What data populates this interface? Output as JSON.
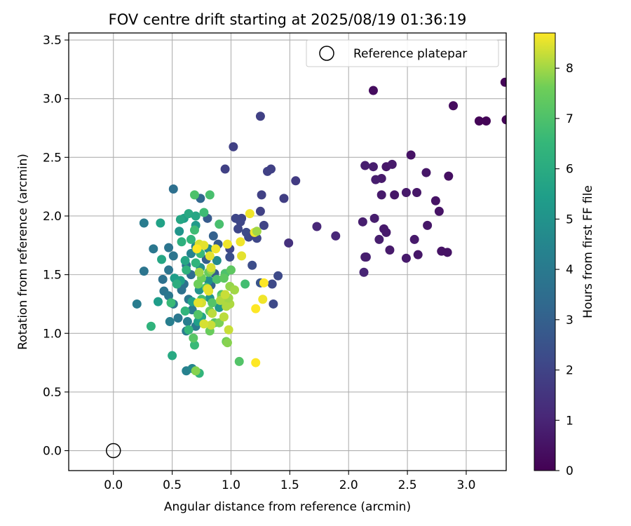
{
  "chart_data": {
    "type": "scatter",
    "title": "FOV centre drift starting at 2025/08/19 01:36:19",
    "xlabel": "Angular distance from reference (arcmin)",
    "ylabel": "Rotation from reference (arcmin)",
    "xlim": [
      -0.38,
      3.34
    ],
    "ylim": [
      -0.17,
      3.56
    ],
    "xticks": [
      "0.0",
      "0.5",
      "1.0",
      "1.5",
      "2.0",
      "2.5",
      "3.0"
    ],
    "yticks": [
      "0.0",
      "0.5",
      "1.0",
      "1.5",
      "2.0",
      "2.5",
      "3.0",
      "3.5"
    ],
    "grid": true,
    "legend": {
      "placement": "top-right",
      "entries": [
        "Reference platepar"
      ]
    },
    "reference_point": {
      "x": 0.0,
      "y": 0.0,
      "name": "Reference platepar",
      "marker": "hollow-circle"
    },
    "colorbar": {
      "label": "Hours from first FF file",
      "colormap": "viridis",
      "range": [
        0,
        8.7
      ],
      "ticks": [
        "0",
        "1",
        "2",
        "3",
        "4",
        "5",
        "6",
        "7",
        "8"
      ]
    },
    "points": [
      [
        3.33,
        3.14,
        0.1
      ],
      [
        2.21,
        3.07,
        0.3
      ],
      [
        2.89,
        2.94,
        0.3
      ],
      [
        3.11,
        2.81,
        0.1
      ],
      [
        3.17,
        2.81,
        0.1
      ],
      [
        3.34,
        2.82,
        0.1
      ],
      [
        2.14,
        2.43,
        0.8
      ],
      [
        2.21,
        2.42,
        0.8
      ],
      [
        2.28,
        2.32,
        0.7
      ],
      [
        2.23,
        2.31,
        0.8
      ],
      [
        2.32,
        2.42,
        0.6
      ],
      [
        2.37,
        2.44,
        0.7
      ],
      [
        2.53,
        2.52,
        0.5
      ],
      [
        2.66,
        2.37,
        0.6
      ],
      [
        2.85,
        2.34,
        0.4
      ],
      [
        2.28,
        2.18,
        0.7
      ],
      [
        2.39,
        2.18,
        0.6
      ],
      [
        2.49,
        2.2,
        0.7
      ],
      [
        2.58,
        2.2,
        0.6
      ],
      [
        2.74,
        2.13,
        0.5
      ],
      [
        2.77,
        2.04,
        0.5
      ],
      [
        2.12,
        1.95,
        0.8
      ],
      [
        2.22,
        1.98,
        0.8
      ],
      [
        2.3,
        1.89,
        0.7
      ],
      [
        2.32,
        1.86,
        0.7
      ],
      [
        2.26,
        1.8,
        0.8
      ],
      [
        2.56,
        1.8,
        0.7
      ],
      [
        2.67,
        1.92,
        0.6
      ],
      [
        2.15,
        1.65,
        0.9
      ],
      [
        2.14,
        1.65,
        0.8
      ],
      [
        2.35,
        1.71,
        0.7
      ],
      [
        2.49,
        1.64,
        0.7
      ],
      [
        2.59,
        1.67,
        0.6
      ],
      [
        2.79,
        1.7,
        0.5
      ],
      [
        2.84,
        1.69,
        0.5
      ],
      [
        2.13,
        1.52,
        1.0
      ],
      [
        1.73,
        1.91,
        1.1
      ],
      [
        1.89,
        1.83,
        1.1
      ],
      [
        1.49,
        1.77,
        1.4
      ],
      [
        1.25,
        2.85,
        1.9
      ],
      [
        1.02,
        2.59,
        1.9
      ],
      [
        0.95,
        2.4,
        1.9
      ],
      [
        1.31,
        2.38,
        1.9
      ],
      [
        1.34,
        2.4,
        1.9
      ],
      [
        1.55,
        2.3,
        1.7
      ],
      [
        1.26,
        2.18,
        1.9
      ],
      [
        1.45,
        2.15,
        1.8
      ],
      [
        1.25,
        2.04,
        1.9
      ],
      [
        1.09,
        1.98,
        2.0
      ],
      [
        1.28,
        1.92,
        2.0
      ],
      [
        1.04,
        1.98,
        2.1
      ],
      [
        1.08,
        1.95,
        2.1
      ],
      [
        1.06,
        1.89,
        2.1
      ],
      [
        1.15,
        1.82,
        2.1
      ],
      [
        1.22,
        1.81,
        2.1
      ],
      [
        0.99,
        1.72,
        2.1
      ],
      [
        1.13,
        1.86,
        2.2
      ],
      [
        1.19,
        1.84,
        2.0
      ],
      [
        1.4,
        1.49,
        2.2
      ],
      [
        1.35,
        1.42,
        2.2
      ],
      [
        1.36,
        1.25,
        2.2
      ],
      [
        1.18,
        1.58,
        2.3
      ],
      [
        0.99,
        1.65,
        2.4
      ],
      [
        1.25,
        1.43,
        2.6
      ],
      [
        0.8,
        1.98,
        2.8
      ],
      [
        0.85,
        1.83,
        3.0
      ],
      [
        0.89,
        1.76,
        2.8
      ],
      [
        0.79,
        1.63,
        2.9
      ],
      [
        0.86,
        1.51,
        2.9
      ],
      [
        0.83,
        1.41,
        3.1
      ],
      [
        0.74,
        2.15,
        3.3
      ],
      [
        0.51,
        2.23,
        3.6
      ],
      [
        0.26,
        1.94,
        4.1
      ],
      [
        0.26,
        1.53,
        3.8
      ],
      [
        0.34,
        1.72,
        3.9
      ],
      [
        0.47,
        1.73,
        3.8
      ],
      [
        0.51,
        1.66,
        3.8
      ],
      [
        0.47,
        1.54,
        3.8
      ],
      [
        0.62,
        1.58,
        3.6
      ],
      [
        0.42,
        1.46,
        3.7
      ],
      [
        0.43,
        1.36,
        3.8
      ],
      [
        0.6,
        1.42,
        3.7
      ],
      [
        0.66,
        1.5,
        3.5
      ],
      [
        0.47,
        1.32,
        3.9
      ],
      [
        0.51,
        1.25,
        4.0
      ],
      [
        0.58,
        1.37,
        3.7
      ],
      [
        0.64,
        1.29,
        3.9
      ],
      [
        0.67,
        1.2,
        4.0
      ],
      [
        0.48,
        1.1,
        4.2
      ],
      [
        0.55,
        1.13,
        3.9
      ],
      [
        0.62,
        1.02,
        4.1
      ],
      [
        0.7,
        1.06,
        4.0
      ],
      [
        0.63,
        1.1,
        4.2
      ],
      [
        0.62,
        0.68,
        4.3
      ],
      [
        0.67,
        0.7,
        4.5
      ],
      [
        0.2,
        1.25,
        4.1
      ],
      [
        0.66,
        1.68,
        4.4
      ],
      [
        0.7,
        1.74,
        4.5
      ],
      [
        0.81,
        1.72,
        4.6
      ],
      [
        0.88,
        1.62,
        4.7
      ],
      [
        0.74,
        1.56,
        4.8
      ],
      [
        0.81,
        1.45,
        4.9
      ],
      [
        0.73,
        1.37,
        5.0
      ],
      [
        0.82,
        1.3,
        5.1
      ],
      [
        0.9,
        1.22,
        5.2
      ],
      [
        0.56,
        1.87,
        5.1
      ],
      [
        0.6,
        1.98,
        5.5
      ],
      [
        0.7,
        1.92,
        5.3
      ],
      [
        0.4,
        1.94,
        5.6
      ],
      [
        0.57,
        1.97,
        5.8
      ],
      [
        0.64,
        2.02,
        5.9
      ],
      [
        0.7,
        2.0,
        5.8
      ],
      [
        0.38,
        1.27,
        5.4
      ],
      [
        0.52,
        1.47,
        5.4
      ],
      [
        0.57,
        1.45,
        5.5
      ],
      [
        0.67,
        1.27,
        5.6
      ],
      [
        0.72,
        1.1,
        5.5
      ],
      [
        0.75,
        1.14,
        5.7
      ],
      [
        0.61,
        1.62,
        5.8
      ],
      [
        0.41,
        1.63,
        5.8
      ],
      [
        0.5,
        0.81,
        5.9
      ],
      [
        0.73,
        0.66,
        6.4
      ],
      [
        0.32,
        1.06,
        6.3
      ],
      [
        0.54,
        1.42,
        6.1
      ],
      [
        0.62,
        1.54,
        6.3
      ],
      [
        0.7,
        1.6,
        6.4
      ],
      [
        0.58,
        1.78,
        6.2
      ],
      [
        0.66,
        1.8,
        6.4
      ],
      [
        0.69,
        1.88,
        6.7
      ],
      [
        0.74,
        1.68,
        6.6
      ],
      [
        0.77,
        2.03,
        6.7
      ],
      [
        0.82,
        2.18,
        6.9
      ],
      [
        0.69,
        2.18,
        7.0
      ],
      [
        0.9,
        1.93,
        6.9
      ],
      [
        0.61,
        1.19,
        6.4
      ],
      [
        0.64,
        1.03,
        6.5
      ],
      [
        0.69,
        0.9,
        6.6
      ],
      [
        0.49,
        1.26,
        6.6
      ],
      [
        0.75,
        1.29,
        6.8
      ],
      [
        0.79,
        1.39,
        6.9
      ],
      [
        0.88,
        1.46,
        7.0
      ],
      [
        0.95,
        1.51,
        7.0
      ],
      [
        0.92,
        1.33,
        7.0
      ],
      [
        0.84,
        1.26,
        7.1
      ],
      [
        0.72,
        1.16,
        7.1
      ],
      [
        0.68,
        0.96,
        7.2
      ],
      [
        0.86,
        1.09,
        7.2
      ],
      [
        1.07,
        0.76,
        7.1
      ],
      [
        1.12,
        1.42,
        6.8
      ],
      [
        0.94,
        1.47,
        7.3
      ],
      [
        1.0,
        1.54,
        7.3
      ],
      [
        0.81,
        1.52,
        7.5
      ],
      [
        0.75,
        1.47,
        7.6
      ],
      [
        0.72,
        1.42,
        7.6
      ],
      [
        0.92,
        1.31,
        7.6
      ],
      [
        0.82,
        1.19,
        7.5
      ],
      [
        0.9,
        1.09,
        7.7
      ],
      [
        0.82,
        1.02,
        7.5
      ],
      [
        0.96,
        0.93,
        7.6
      ],
      [
        0.97,
        0.92,
        7.8
      ],
      [
        0.7,
        0.68,
        7.8
      ],
      [
        0.83,
        1.54,
        7.9
      ],
      [
        0.73,
        1.52,
        8.0
      ],
      [
        0.99,
        1.4,
        7.9
      ],
      [
        1.03,
        1.37,
        8.0
      ],
      [
        0.96,
        1.29,
        8.0
      ],
      [
        0.91,
        1.28,
        8.1
      ],
      [
        0.99,
        1.25,
        8.1
      ],
      [
        0.96,
        1.23,
        8.1
      ],
      [
        0.98,
        1.3,
        8.0
      ],
      [
        0.84,
        1.17,
        8.2
      ],
      [
        0.83,
        1.07,
        8.3
      ],
      [
        0.94,
        1.14,
        8.2
      ],
      [
        0.98,
        1.03,
        8.3
      ],
      [
        0.95,
        1.33,
        8.3
      ],
      [
        0.75,
        1.26,
        8.4
      ],
      [
        0.72,
        1.26,
        8.5
      ],
      [
        0.77,
        1.08,
        8.4
      ],
      [
        0.8,
        1.38,
        8.5
      ],
      [
        0.81,
        1.36,
        8.5
      ],
      [
        0.73,
        1.76,
        8.4
      ],
      [
        0.77,
        1.75,
        8.5
      ],
      [
        0.82,
        1.66,
        8.5
      ],
      [
        0.83,
        1.56,
        8.4
      ],
      [
        0.97,
        1.76,
        8.6
      ],
      [
        1.08,
        1.78,
        8.6
      ],
      [
        1.09,
        1.66,
        8.5
      ],
      [
        1.2,
        1.86,
        8.6
      ],
      [
        1.16,
        2.02,
        8.6
      ],
      [
        1.28,
        1.43,
        8.7
      ],
      [
        1.27,
        1.29,
        8.6
      ],
      [
        1.21,
        1.21,
        8.7
      ],
      [
        1.21,
        0.75,
        8.7
      ],
      [
        0.71,
        1.72,
        8.7
      ],
      [
        0.87,
        1.72,
        8.6
      ],
      [
        1.22,
        1.87,
        8.0
      ]
    ]
  }
}
